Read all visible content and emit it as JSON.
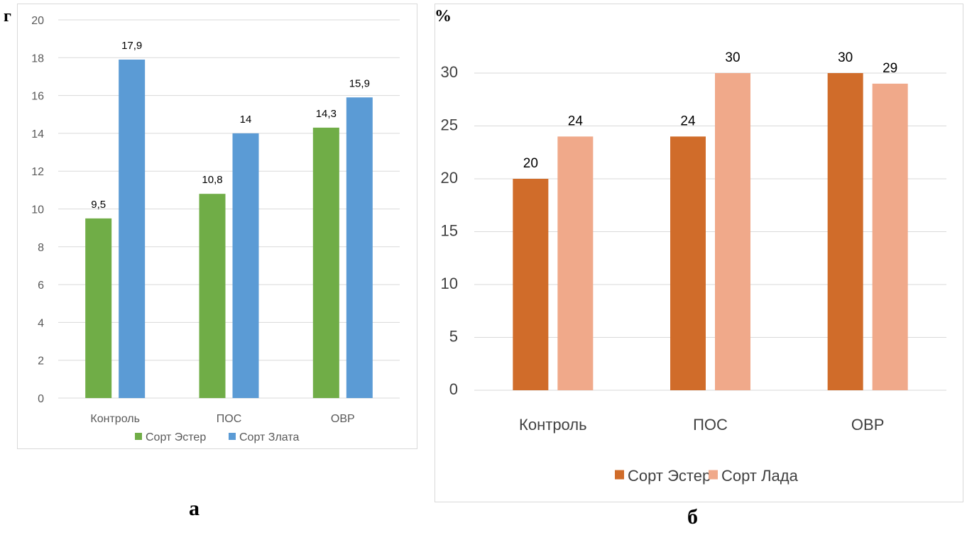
{
  "chart_data": [
    {
      "id": "a",
      "type": "bar",
      "panel_label": "а",
      "unit_label": "г",
      "categories": [
        "Контроль",
        "ПОС",
        "ОВР"
      ],
      "series": [
        {
          "name": "Сорт Эстер",
          "values": [
            9.5,
            10.8,
            14.3
          ],
          "labels": [
            "9,5",
            "10,8",
            "14,3"
          ],
          "color": "#70ad47"
        },
        {
          "name": "Сорт Злата",
          "values": [
            17.9,
            14,
            15.9
          ],
          "labels": [
            "17,9",
            "14",
            "15,9"
          ],
          "color": "#5b9bd5"
        }
      ],
      "ylim": [
        0,
        20
      ],
      "yticks": [
        0,
        2,
        4,
        6,
        8,
        10,
        12,
        14,
        16,
        18,
        20
      ],
      "grid": true,
      "legend": "bottom"
    },
    {
      "id": "b",
      "type": "bar",
      "panel_label": "б",
      "unit_label": "%",
      "categories": [
        "Контроль",
        "ПОС",
        "ОВР"
      ],
      "series": [
        {
          "name": "Сорт Эстер",
          "values": [
            20,
            24,
            30
          ],
          "labels": [
            "20",
            "24",
            "30"
          ],
          "color": "#d06c2a"
        },
        {
          "name": "Сорт Лада",
          "values": [
            24,
            30,
            29
          ],
          "labels": [
            "24",
            "30",
            "29"
          ],
          "color": "#f0a98a"
        }
      ],
      "ylim": [
        0,
        30
      ],
      "yticks": [
        0,
        5,
        10,
        15,
        20,
        25,
        30
      ],
      "grid": true,
      "legend": "bottom"
    }
  ]
}
